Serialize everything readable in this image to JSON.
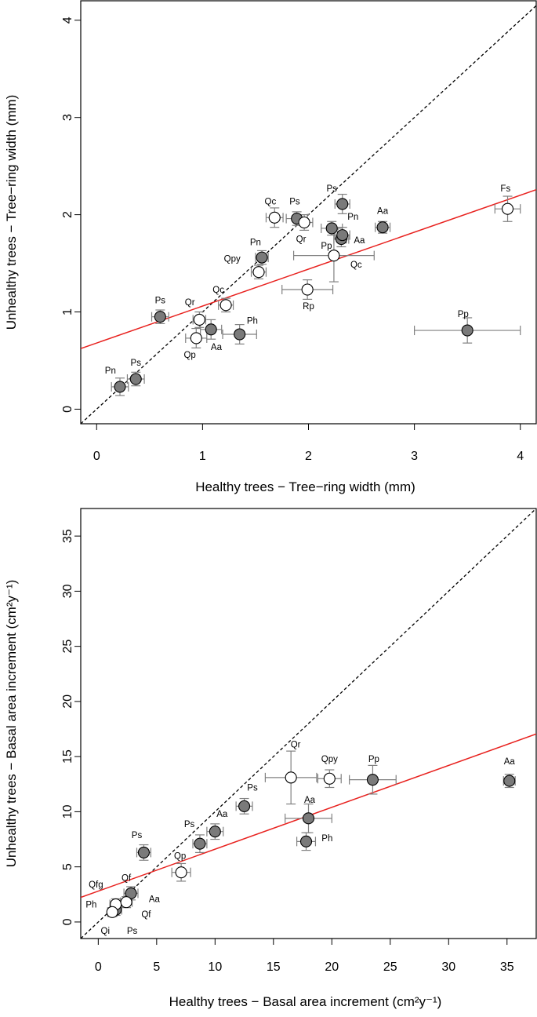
{
  "chart_data": [
    {
      "type": "scatter",
      "xlabel": "Healthy trees − Tree−ring width (mm)",
      "ylabel": "Unhealthy trees − Tree−ring width (mm)",
      "xlim": [
        -0.15,
        4.15
      ],
      "ylim": [
        -0.15,
        4.2
      ],
      "xticks": [
        "0",
        "1",
        "2",
        "3",
        "4"
      ],
      "yticks": [
        "0",
        "1",
        "2",
        "3",
        "4"
      ],
      "grid": false,
      "reference_line": {
        "style": "dashed",
        "color": "#000000",
        "slope": 1,
        "intercept": 0
      },
      "fit_line": {
        "color": "#e8211e",
        "slope": 0.38,
        "intercept": 0.68
      },
      "series": [
        {
          "fill": "#7a7a7a",
          "points": [
            {
              "label": "Pn",
              "x": 0.22,
              "y": 0.23,
              "xerr": 0.08,
              "yerr": 0.09
            },
            {
              "label": "Ps",
              "x": 0.37,
              "y": 0.31,
              "xerr": 0.08,
              "yerr": 0.07
            },
            {
              "label": "Ps",
              "x": 0.6,
              "y": 0.95,
              "xerr": 0.08,
              "yerr": 0.07
            },
            {
              "label": "Aa",
              "x": 1.08,
              "y": 0.82,
              "xerr": 0.1,
              "yerr": 0.1
            },
            {
              "label": "Ph",
              "x": 1.35,
              "y": 0.77,
              "xerr": 0.16,
              "yerr": 0.1
            },
            {
              "label": "Pn",
              "x": 1.56,
              "y": 1.56,
              "xerr": 0.06,
              "yerr": 0.07
            },
            {
              "label": "Ps",
              "x": 1.89,
              "y": 1.96,
              "xerr": 0.1,
              "yerr": 0.07
            },
            {
              "label": "Ps",
              "x": 2.32,
              "y": 2.11,
              "xerr": 0.07,
              "yerr": 0.1
            },
            {
              "label": "Pn",
              "x": 2.22,
              "y": 1.86,
              "xerr": 0.1,
              "yerr": 0.07
            },
            {
              "label": "Aa",
              "x": 2.31,
              "y": 1.75,
              "xerr": 0.07,
              "yerr": 0.08
            },
            {
              "label": "",
              "x": 2.32,
              "y": 1.79,
              "xerr": 0.07,
              "yerr": 0.08
            },
            {
              "label": "Aa",
              "x": 2.7,
              "y": 1.87,
              "xerr": 0.07,
              "yerr": 0.06
            },
            {
              "label": "Pp",
              "x": 3.5,
              "y": 0.81,
              "xerr": 0.5,
              "yerr": 0.13
            }
          ]
        },
        {
          "fill": "#ffffff",
          "points": [
            {
              "label": "Qp",
              "x": 0.94,
              "y": 0.73,
              "xerr": 0.1,
              "yerr": 0.1
            },
            {
              "label": "Qr",
              "x": 0.97,
              "y": 0.92,
              "xerr": 0.06,
              "yerr": 0.08
            },
            {
              "label": "Qc",
              "x": 1.22,
              "y": 1.07,
              "xerr": 0.07,
              "yerr": 0.07
            },
            {
              "label": "Qpy",
              "x": 1.53,
              "y": 1.41,
              "xerr": 0.07,
              "yerr": 0.07
            },
            {
              "label": "Qc",
              "x": 1.68,
              "y": 1.97,
              "xerr": 0.08,
              "yerr": 0.1
            },
            {
              "label": "Qr",
              "x": 1.96,
              "y": 1.92,
              "xerr": 0.08,
              "yerr": 0.08
            },
            {
              "label": "Rp",
              "x": 1.99,
              "y": 1.23,
              "xerr": 0.24,
              "yerr": 0.1
            },
            {
              "label": "Pp",
              "x": 2.24,
              "y": 1.58,
              "xerr": 0.38,
              "yerr": 0.27
            },
            {
              "label": "Fs",
              "x": 3.88,
              "y": 2.06,
              "xerr": 0.12,
              "yerr": 0.13
            }
          ]
        }
      ],
      "labels": [
        {
          "text": "Pn",
          "x": 0.13,
          "y": 0.4
        },
        {
          "text": "Ps",
          "x": 0.37,
          "y": 0.48
        },
        {
          "text": "Ps",
          "x": 0.6,
          "y": 1.12
        },
        {
          "text": "Qr",
          "x": 0.88,
          "y": 1.1
        },
        {
          "text": "Qp",
          "x": 0.88,
          "y": 0.56
        },
        {
          "text": "Aa",
          "x": 1.13,
          "y": 0.64
        },
        {
          "text": "Ph",
          "x": 1.47,
          "y": 0.91
        },
        {
          "text": "Qc",
          "x": 1.15,
          "y": 1.23
        },
        {
          "text": "Qpy",
          "x": 1.28,
          "y": 1.55
        },
        {
          "text": "Pn",
          "x": 1.5,
          "y": 1.72
        },
        {
          "text": "Qc",
          "x": 1.64,
          "y": 2.14
        },
        {
          "text": "Ps",
          "x": 1.87,
          "y": 2.14
        },
        {
          "text": "Qr",
          "x": 1.93,
          "y": 1.75
        },
        {
          "text": "Ps",
          "x": 2.22,
          "y": 2.27
        },
        {
          "text": "Pn",
          "x": 2.42,
          "y": 1.98
        },
        {
          "text": "Aa",
          "x": 2.7,
          "y": 2.04
        },
        {
          "text": "Aa",
          "x": 2.48,
          "y": 1.74
        },
        {
          "text": "Pp",
          "x": 2.17,
          "y": 1.68
        },
        {
          "text": "Qc",
          "x": 2.45,
          "y": 1.49
        },
        {
          "text": "Rp",
          "x": 2.0,
          "y": 1.06
        },
        {
          "text": "Fs",
          "x": 3.86,
          "y": 2.27
        },
        {
          "text": "Pp",
          "x": 3.46,
          "y": 0.98
        }
      ]
    },
    {
      "type": "scatter",
      "xlabel": "Healthy trees − Basal area increment (cm²y⁻¹)",
      "ylabel": "Unhealthy trees − Basal area increment (cm²y⁻¹)",
      "xlim": [
        -1.5,
        37.5
      ],
      "ylim": [
        -1.5,
        37.5
      ],
      "xticks": [
        "0",
        "5",
        "10",
        "15",
        "20",
        "25",
        "30",
        "35"
      ],
      "yticks": [
        "0",
        "5",
        "10",
        "15",
        "20",
        "25",
        "30",
        "35"
      ],
      "grid": false,
      "reference_line": {
        "style": "dashed",
        "color": "#000000",
        "slope": 1,
        "intercept": 0
      },
      "fit_line": {
        "color": "#e8211e",
        "slope": 0.38,
        "intercept": 2.8
      },
      "series": [
        {
          "fill": "#7a7a7a",
          "points": [
            {
              "label": "Ps",
              "x": 3.9,
              "y": 6.3,
              "xerr": 0.6,
              "yerr": 0.7
            },
            {
              "label": "Qf",
              "x": 2.8,
              "y": 2.6,
              "xerr": 0.6,
              "yerr": 0.6
            },
            {
              "label": "Ps",
              "x": 1.5,
              "y": 1.1,
              "xerr": 0.5,
              "yerr": 0.5
            },
            {
              "label": "Ps",
              "x": 8.7,
              "y": 7.1,
              "xerr": 0.6,
              "yerr": 0.8
            },
            {
              "label": "Aa",
              "x": 10.0,
              "y": 8.2,
              "xerr": 0.7,
              "yerr": 0.7
            },
            {
              "label": "Ps",
              "x": 12.5,
              "y": 10.5,
              "xerr": 0.7,
              "yerr": 0.7
            },
            {
              "label": "Aa",
              "x": 18.0,
              "y": 9.4,
              "xerr": 2.0,
              "yerr": 1.3
            },
            {
              "label": "Ph",
              "x": 17.8,
              "y": 7.3,
              "xerr": 0.8,
              "yerr": 0.8
            },
            {
              "label": "Pp",
              "x": 23.5,
              "y": 12.9,
              "xerr": 2.0,
              "yerr": 1.3
            },
            {
              "label": "Aa",
              "x": 35.2,
              "y": 12.8,
              "xerr": 0.5,
              "yerr": 0.6
            }
          ]
        },
        {
          "fill": "#ffffff",
          "points": [
            {
              "label": "Qp",
              "x": 7.1,
              "y": 4.5,
              "xerr": 0.8,
              "yerr": 0.8
            },
            {
              "label": "Qr",
              "x": 16.5,
              "y": 13.1,
              "xerr": 2.2,
              "yerr": 2.4
            },
            {
              "label": "Qpy",
              "x": 19.8,
              "y": 13.0,
              "xerr": 1.0,
              "yerr": 0.8
            },
            {
              "label": "Qfg",
              "x": 1.5,
              "y": 1.6,
              "xerr": 0.5,
              "yerr": 0.5
            },
            {
              "label": "Qi",
              "x": 1.2,
              "y": 0.9,
              "xerr": 0.4,
              "yerr": 0.4
            },
            {
              "label": "Qf",
              "x": 2.4,
              "y": 1.8,
              "xerr": 0.5,
              "yerr": 0.5
            }
          ]
        }
      ],
      "labels": [
        {
          "text": "Ps",
          "x": 3.3,
          "y": 7.9
        },
        {
          "text": "Qf",
          "x": 2.4,
          "y": 4.0
        },
        {
          "text": "Qfg",
          "x": -0.2,
          "y": 3.4
        },
        {
          "text": "Aa",
          "x": 4.8,
          "y": 2.1
        },
        {
          "text": "Ph",
          "x": -0.6,
          "y": 1.6
        },
        {
          "text": "Qf",
          "x": 4.1,
          "y": 0.7
        },
        {
          "text": "Qi",
          "x": 0.6,
          "y": -0.8
        },
        {
          "text": "Ps",
          "x": 2.9,
          "y": -0.8
        },
        {
          "text": "Qp",
          "x": 7.0,
          "y": 6.0
        },
        {
          "text": "Ps",
          "x": 7.8,
          "y": 8.9
        },
        {
          "text": "Aa",
          "x": 10.6,
          "y": 9.8
        },
        {
          "text": "Ps",
          "x": 13.2,
          "y": 12.2
        },
        {
          "text": "Qr",
          "x": 16.9,
          "y": 16.1
        },
        {
          "text": "Qpy",
          "x": 19.8,
          "y": 14.8
        },
        {
          "text": "Pp",
          "x": 23.6,
          "y": 14.8
        },
        {
          "text": "Aa",
          "x": 18.1,
          "y": 11.1
        },
        {
          "text": "Ph",
          "x": 19.6,
          "y": 7.6
        },
        {
          "text": "Aa",
          "x": 35.2,
          "y": 14.6
        }
      ]
    }
  ]
}
